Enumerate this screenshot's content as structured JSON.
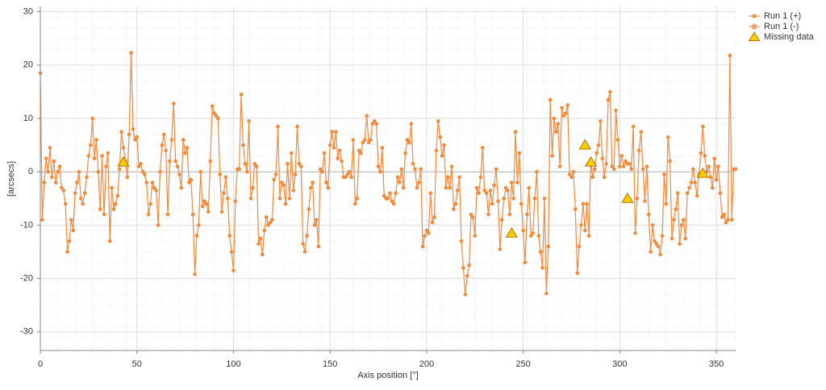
{
  "chart_data": {
    "type": "line",
    "x_label": "Axis position [°]",
    "y_label": "[arcsecs]",
    "xlim": [
      0,
      360
    ],
    "ylim": [
      -33.5,
      31
    ],
    "xticks": [
      0,
      50,
      100,
      150,
      200,
      250,
      300,
      350
    ],
    "yticks": [
      -30,
      -20,
      -10,
      0,
      10,
      20,
      30
    ],
    "grid": true,
    "legend": "top-right",
    "series": [
      {
        "name": "Run 1 (+)",
        "color": "#f08a3c",
        "marker": "circle",
        "x": [
          0,
          1,
          2,
          3,
          4,
          5,
          6,
          7,
          8,
          9,
          10,
          11,
          12,
          13,
          14,
          15,
          16,
          17,
          18,
          19,
          20,
          21,
          22,
          23,
          24,
          25,
          26,
          27,
          28,
          29,
          30,
          31,
          32,
          33,
          34,
          35,
          36,
          37,
          38,
          39,
          40,
          41,
          42,
          43,
          44,
          45,
          46,
          47,
          48,
          49,
          50,
          51,
          52,
          53,
          54,
          55,
          56,
          57,
          58,
          59,
          60,
          61,
          62,
          63,
          64,
          65,
          66,
          67,
          68,
          69,
          70,
          71,
          72,
          73,
          74,
          75,
          76,
          77,
          78,
          79,
          80,
          81,
          82,
          83,
          84,
          85,
          86,
          87,
          88,
          89,
          90,
          91,
          92,
          93,
          94,
          95,
          96,
          97,
          98,
          99,
          100,
          101,
          102,
          103,
          104,
          105,
          106,
          107,
          108,
          109,
          110,
          111,
          112,
          113,
          114,
          115,
          116,
          117,
          118,
          119,
          120,
          121,
          122,
          123,
          124,
          125,
          126,
          127,
          128,
          129,
          130,
          131,
          132,
          133,
          134,
          135,
          136,
          137,
          138,
          139,
          140,
          141,
          142,
          143,
          144,
          145,
          146,
          147,
          148,
          149,
          150,
          151,
          152,
          153,
          154,
          155,
          156,
          157,
          158,
          159,
          160,
          161,
          162,
          163,
          164,
          165,
          166,
          167,
          168,
          169,
          170,
          171,
          172,
          173,
          174,
          175,
          176,
          177,
          178,
          179,
          180,
          181,
          182,
          183,
          184,
          185,
          186,
          187,
          188,
          189,
          190,
          191,
          192,
          193,
          194,
          195,
          196,
          197,
          198,
          199,
          200,
          201,
          202,
          203,
          204,
          205,
          206,
          207,
          208,
          209,
          210,
          211,
          212,
          213,
          214,
          215,
          216,
          217,
          218,
          219,
          220,
          221,
          222,
          223,
          224,
          225,
          226,
          227,
          228,
          229,
          230,
          231,
          232,
          233,
          234,
          235,
          236,
          237,
          238,
          239,
          240,
          241,
          242,
          243,
          244,
          245,
          246,
          247,
          248,
          249,
          250,
          251,
          252,
          253,
          254,
          255,
          256,
          257,
          258,
          259,
          260,
          261,
          262,
          263,
          264,
          265,
          266,
          267,
          268,
          269,
          270,
          271,
          272,
          273,
          274,
          275,
          276,
          277,
          278,
          279,
          280,
          281,
          282,
          283,
          284,
          285,
          286,
          287,
          288,
          289,
          290,
          291,
          292,
          293,
          294,
          295,
          296,
          297,
          298,
          299,
          300,
          301,
          302,
          303,
          304,
          305,
          306,
          307,
          308,
          309,
          310,
          311,
          312,
          313,
          314,
          315,
          316,
          317,
          318,
          319,
          320,
          321,
          322,
          323,
          324,
          325,
          326,
          327,
          328,
          329,
          330,
          331,
          332,
          333,
          334,
          335,
          336,
          337,
          338,
          339,
          340,
          341,
          342,
          343,
          344,
          345,
          346,
          347,
          348,
          349,
          350,
          351,
          352,
          353,
          354,
          355,
          356,
          357,
          358,
          359,
          360
        ],
        "values": [
          18.5,
          -9,
          -2,
          2.5,
          0,
          4.5,
          -1,
          2,
          -2,
          0,
          1,
          -3,
          -3.5,
          -6,
          -15,
          -13,
          -9,
          -11,
          -4,
          -2,
          0,
          -5,
          -6,
          -4,
          -1,
          3,
          5,
          10,
          2.5,
          6,
          0,
          -7,
          3,
          -8,
          1,
          3.5,
          -13,
          -3,
          -7,
          -6,
          -4.5,
          0.5,
          7.5,
          4.5,
          2,
          -1,
          7,
          22.3,
          8,
          6,
          6.5,
          1,
          1.5,
          0,
          -0.5,
          -2,
          -8,
          -6,
          -2,
          -3,
          -3.5,
          -10,
          0,
          5,
          7,
          4,
          -8,
          2,
          6,
          12.8,
          2,
          1,
          -0.5,
          -3,
          6,
          3.5,
          4.5,
          -2,
          -1.5,
          -8,
          -19.2,
          -12,
          -10,
          0,
          -6.5,
          -5.5,
          -6,
          -7.5,
          2,
          12.3,
          11,
          10.5,
          10,
          -0.5,
          -7.5,
          -4,
          -1,
          -5,
          -12,
          -15,
          -18.5,
          -5.5,
          0.5,
          0.5,
          14.5,
          5,
          1.5,
          0,
          9.5,
          -5,
          -3,
          1.5,
          1,
          -13.5,
          -12.5,
          -15.5,
          -11,
          -8.5,
          -10,
          -9.5,
          -9,
          -1.5,
          -0.5,
          8.5,
          -5,
          -2,
          -2.5,
          -6,
          1.5,
          -5,
          3.5,
          -3.5,
          -0.5,
          8.5,
          1.5,
          1,
          -13.5,
          -15,
          -12,
          -7,
          -3,
          -2,
          -10,
          -9,
          -14,
          0.5,
          0,
          3.5,
          -2,
          -3,
          5,
          7.5,
          4.5,
          7.5,
          2.5,
          4,
          2,
          -1,
          -1,
          -0.5,
          0,
          -1,
          6,
          -6,
          -5,
          4,
          3.5,
          5.5,
          6,
          10.5,
          5.5,
          6,
          9,
          9.5,
          9,
          1,
          0,
          4.5,
          -4.5,
          -5,
          -5,
          -4,
          -5.5,
          -6,
          -4,
          -1,
          -2,
          0.5,
          -3,
          3.5,
          6,
          5.5,
          9,
          1.5,
          0.5,
          -3,
          -2,
          0.5,
          -14,
          -12,
          -11,
          -11.5,
          -4,
          -9.5,
          -8.5,
          4,
          9.5,
          6.5,
          3,
          5,
          -3,
          -1,
          -3,
          1,
          -7,
          -6,
          -3.5,
          -1,
          -13,
          -18,
          -23,
          -19.5,
          -17.5,
          -8,
          -8.5,
          -12,
          -3,
          -4,
          -1,
          4.5,
          -3.5,
          -4,
          -8,
          -3.5,
          -6,
          -2.5,
          0.5,
          -5.5,
          -14.5,
          -9,
          -5,
          -3,
          -3.5,
          -8,
          -2,
          -5,
          7.5,
          -2,
          3.5,
          -6,
          -11,
          -17,
          -8,
          -3,
          -12,
          -11.5,
          -5,
          0,
          -12,
          -15,
          -18,
          -5,
          -22.8,
          -14,
          13.5,
          3,
          10,
          7.5,
          9,
          1,
          12,
          10.5,
          11,
          12.5,
          -0.5,
          -1,
          0,
          -7,
          -19,
          -14,
          -10,
          -6,
          -11,
          -6,
          -12,
          2,
          -1,
          0.5,
          3.5,
          5,
          9.5,
          2.5,
          -1,
          1.5,
          13.5,
          15,
          1,
          0.5,
          11.5,
          6,
          1,
          3,
          1,
          2,
          1.5,
          1.5,
          0.5,
          8.5,
          -11.5,
          -5,
          4,
          7.5,
          0.5,
          -5.5,
          1,
          -8,
          -15,
          -10,
          -13,
          -13.5,
          -14,
          -15.5,
          -12,
          -0.5,
          -6,
          6.5,
          2,
          -12.5,
          -9,
          -7,
          -4,
          -13.5,
          -10,
          -9,
          -12.5,
          -4,
          -3,
          -2,
          0.5,
          -2,
          -4.5,
          -0.5,
          3.5,
          8.5,
          3,
          0,
          1,
          -1,
          -3,
          2.5,
          -1.5,
          1,
          -4,
          -8.5,
          -8,
          -9.5,
          -9,
          21.8,
          -9,
          0.5,
          0.5
        ]
      },
      {
        "name": "Run 1 (-)",
        "color": "#f4a070",
        "marker": "circle",
        "x": [],
        "values": []
      },
      {
        "name": "Missing data",
        "color": "#f5d000",
        "marker": "triangle",
        "x": [
          43,
          244,
          282,
          285,
          304,
          343
        ],
        "values": [
          1.8,
          -11.5,
          5,
          1.8,
          -5,
          -0.3
        ]
      }
    ]
  }
}
